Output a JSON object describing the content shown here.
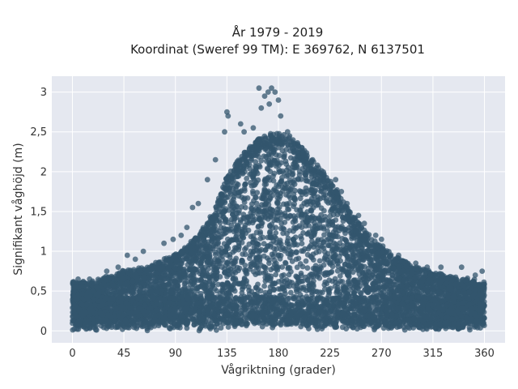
{
  "chart_data": {
    "type": "scatter",
    "title_lines": [
      "År 1979 - 2019",
      "Koordinat (Sweref 99 TM): E 369762, N 6137501"
    ],
    "xlabel": "Vågriktning (grader)",
    "ylabel": "Signifikant våghöjd (m)",
    "xlim": [
      -18,
      378
    ],
    "ylim": [
      -0.15,
      3.2
    ],
    "x_ticks": [
      0,
      45,
      90,
      135,
      180,
      225,
      270,
      315,
      360
    ],
    "x_tick_labels": [
      "0",
      "45",
      "90",
      "135",
      "180",
      "225",
      "270",
      "315",
      "360"
    ],
    "y_ticks": [
      0,
      0.5,
      1,
      1.5,
      2,
      2.5,
      3
    ],
    "y_tick_labels": [
      "0",
      "0,5",
      "1",
      "1,5",
      "2",
      "2,5",
      "3"
    ],
    "grid": true,
    "colors": {
      "marker": "#33566d",
      "plot_bg": "#e5e8f0",
      "grid": "#ffffff"
    },
    "envelope": {
      "x": [
        0,
        20,
        45,
        65,
        90,
        110,
        125,
        135,
        150,
        165,
        180,
        195,
        210,
        225,
        240,
        260,
        280,
        300,
        330,
        360
      ],
      "y_max": [
        0.62,
        0.62,
        0.75,
        0.8,
        0.95,
        1.2,
        1.55,
        1.95,
        2.25,
        2.45,
        2.5,
        2.4,
        2.15,
        1.9,
        1.55,
        1.2,
        0.95,
        0.8,
        0.68,
        0.6
      ]
    },
    "outliers": [
      {
        "x": 163,
        "y": 3.05
      },
      {
        "x": 171,
        "y": 3.0
      },
      {
        "x": 174,
        "y": 3.05
      },
      {
        "x": 177,
        "y": 3.0
      },
      {
        "x": 168,
        "y": 2.95
      },
      {
        "x": 180,
        "y": 2.9
      },
      {
        "x": 165,
        "y": 2.8
      },
      {
        "x": 172,
        "y": 2.85
      },
      {
        "x": 135,
        "y": 2.75
      },
      {
        "x": 136,
        "y": 2.7
      },
      {
        "x": 147,
        "y": 2.6
      },
      {
        "x": 158,
        "y": 2.55
      },
      {
        "x": 182,
        "y": 2.7
      },
      {
        "x": 188,
        "y": 2.5
      },
      {
        "x": 150,
        "y": 2.5
      },
      {
        "x": 195,
        "y": 2.35
      },
      {
        "x": 133,
        "y": 2.5
      },
      {
        "x": 125,
        "y": 2.15
      },
      {
        "x": 205,
        "y": 2.2
      },
      {
        "x": 215,
        "y": 2.05
      },
      {
        "x": 118,
        "y": 1.9
      },
      {
        "x": 110,
        "y": 1.6
      },
      {
        "x": 105,
        "y": 1.55
      },
      {
        "x": 235,
        "y": 1.75
      },
      {
        "x": 240,
        "y": 1.6
      },
      {
        "x": 250,
        "y": 1.45
      },
      {
        "x": 255,
        "y": 1.35
      },
      {
        "x": 265,
        "y": 1.2
      },
      {
        "x": 270,
        "y": 1.15
      },
      {
        "x": 95,
        "y": 1.2
      },
      {
        "x": 88,
        "y": 1.15
      },
      {
        "x": 80,
        "y": 1.1
      },
      {
        "x": 62,
        "y": 1.0
      },
      {
        "x": 55,
        "y": 0.9
      },
      {
        "x": 48,
        "y": 0.95
      },
      {
        "x": 40,
        "y": 0.8
      },
      {
        "x": 30,
        "y": 0.75
      },
      {
        "x": 15,
        "y": 0.65
      },
      {
        "x": 5,
        "y": 0.65
      },
      {
        "x": 285,
        "y": 0.95
      },
      {
        "x": 300,
        "y": 0.85
      },
      {
        "x": 310,
        "y": 0.8
      },
      {
        "x": 322,
        "y": 0.8
      },
      {
        "x": 340,
        "y": 0.8
      },
      {
        "x": 352,
        "y": 0.7
      },
      {
        "x": 358,
        "y": 0.75
      },
      {
        "x": 100,
        "y": 1.3
      },
      {
        "x": 230,
        "y": 1.9
      }
    ]
  }
}
